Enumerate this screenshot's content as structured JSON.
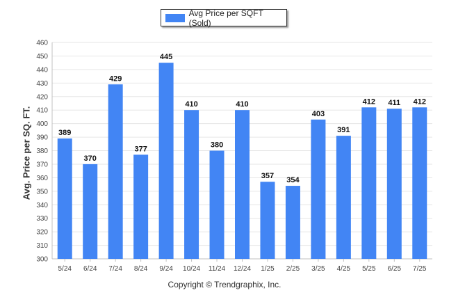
{
  "chart_data": {
    "type": "bar",
    "title": "",
    "xlabel": "",
    "ylabel": "Avg. Price per SQ. FT.",
    "ylim": [
      300,
      460
    ],
    "ytick_step": 10,
    "grid": true,
    "legend": "top-center",
    "categories": [
      "5/24",
      "6/24",
      "7/24",
      "8/24",
      "9/24",
      "10/24",
      "11/24",
      "12/24",
      "1/25",
      "2/25",
      "3/25",
      "4/25",
      "5/25",
      "6/25",
      "7/25"
    ],
    "series": [
      {
        "name": "Avg Price per SQFT (Sold)",
        "color": "#4285f4",
        "values": [
          389,
          370,
          429,
          377,
          445,
          410,
          380,
          410,
          357,
          354,
          403,
          391,
          412,
          411,
          412
        ]
      }
    ]
  },
  "footer": "Copyright © Trendgraphix, Inc."
}
